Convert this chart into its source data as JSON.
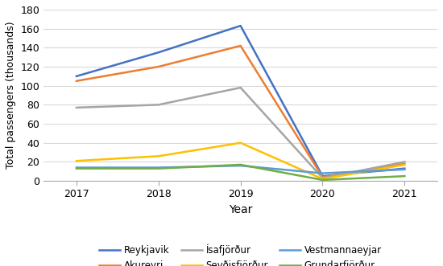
{
  "years": [
    2017,
    2018,
    2019,
    2020,
    2021
  ],
  "series": [
    {
      "name": "Reykjavik",
      "values": [
        110,
        135,
        163,
        5,
        13
      ],
      "color": "#4472c4",
      "marker": "none"
    },
    {
      "name": "Akureyri",
      "values": [
        105,
        120,
        142,
        4,
        18
      ],
      "color": "#ed7d31",
      "marker": "none"
    },
    {
      "name": "Ísafjörður",
      "values": [
        77,
        80,
        98,
        3,
        20
      ],
      "color": "#a5a5a5",
      "marker": "none"
    },
    {
      "name": "Seyðisfjörður",
      "values": [
        21,
        26,
        40,
        2,
        17
      ],
      "color": "#ffc000",
      "marker": "none"
    },
    {
      "name": "Vestmannaeyjar",
      "values": [
        14,
        14,
        16,
        8,
        12
      ],
      "color": "#5b9bd5",
      "marker": "none"
    },
    {
      "name": "Grundarfjörður",
      "values": [
        13,
        13,
        17,
        1,
        5
      ],
      "color": "#70ad47",
      "marker": "none"
    }
  ],
  "xlabel": "Year",
  "ylabel": "Total passengers (thousands)",
  "ylim": [
    0,
    180
  ],
  "yticks": [
    0,
    20,
    40,
    60,
    80,
    100,
    120,
    140,
    160,
    180
  ],
  "background_color": "#ffffff",
  "grid_color": "#d9d9d9"
}
